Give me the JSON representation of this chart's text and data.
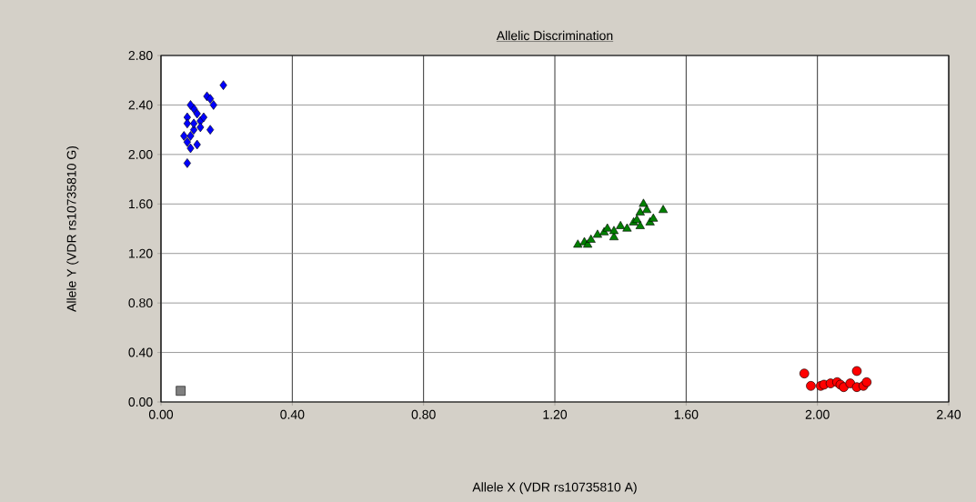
{
  "chart_data": {
    "type": "scatter",
    "title": "Allelic Discrimination",
    "xlabel": "Allele X (VDR rs10735810 A)",
    "ylabel": "Allele Y (VDR rs10735810 G)",
    "xlim": [
      0,
      2.4
    ],
    "ylim": [
      0,
      2.8
    ],
    "xticks": [
      {
        "value": 0,
        "label": "0.00"
      },
      {
        "value": 0.4,
        "label": "0.40"
      },
      {
        "value": 0.8,
        "label": "0.80"
      },
      {
        "value": 1.2,
        "label": "1.20"
      },
      {
        "value": 1.6,
        "label": "1.60"
      },
      {
        "value": 2.0,
        "label": "2.00"
      },
      {
        "value": 2.4,
        "label": "2.40"
      }
    ],
    "yticks": [
      {
        "value": 0,
        "label": "0.00"
      },
      {
        "value": 0.4,
        "label": "0.40"
      },
      {
        "value": 0.8,
        "label": "0.80"
      },
      {
        "value": 1.2,
        "label": "1.20"
      },
      {
        "value": 1.6,
        "label": "1.60"
      },
      {
        "value": 2.0,
        "label": "2.00"
      },
      {
        "value": 2.4,
        "label": "2.40"
      },
      {
        "value": 2.8,
        "label": "2.80"
      }
    ],
    "grid": true,
    "series": [
      {
        "color": "#0000ff",
        "marker": "diamond",
        "x": [
          0.08,
          0.09,
          0.08,
          0.09,
          0.1,
          0.08,
          0.1,
          0.09,
          0.11,
          0.12,
          0.12,
          0.13,
          0.14,
          0.15,
          0.16,
          0.15,
          0.11,
          0.1,
          0.19,
          0.07,
          0.08
        ],
        "values": [
          1.93,
          2.05,
          2.1,
          2.15,
          2.2,
          2.3,
          2.37,
          2.4,
          2.33,
          2.27,
          2.22,
          2.3,
          2.47,
          2.45,
          2.4,
          2.2,
          2.08,
          2.25,
          2.56,
          2.15,
          2.25
        ]
      },
      {
        "color": "#008000",
        "marker": "triangle",
        "x": [
          1.27,
          1.29,
          1.3,
          1.31,
          1.33,
          1.35,
          1.36,
          1.38,
          1.38,
          1.4,
          1.42,
          1.44,
          1.45,
          1.46,
          1.47,
          1.48,
          1.49,
          1.5,
          1.46,
          1.53
        ],
        "values": [
          1.27,
          1.29,
          1.27,
          1.31,
          1.35,
          1.37,
          1.4,
          1.33,
          1.38,
          1.42,
          1.4,
          1.45,
          1.47,
          1.53,
          1.6,
          1.55,
          1.45,
          1.48,
          1.42,
          1.55
        ]
      },
      {
        "color": "#ff0000",
        "marker": "circle",
        "x": [
          1.96,
          1.98,
          2.01,
          2.02,
          2.04,
          2.06,
          2.07,
          2.08,
          2.1,
          2.12,
          2.12,
          2.14,
          2.15
        ],
        "values": [
          0.23,
          0.13,
          0.13,
          0.14,
          0.15,
          0.16,
          0.14,
          0.12,
          0.15,
          0.12,
          0.25,
          0.13,
          0.16
        ]
      },
      {
        "color": "#808080",
        "marker": "square",
        "x": [
          0.06
        ],
        "values": [
          0.09
        ]
      }
    ]
  }
}
